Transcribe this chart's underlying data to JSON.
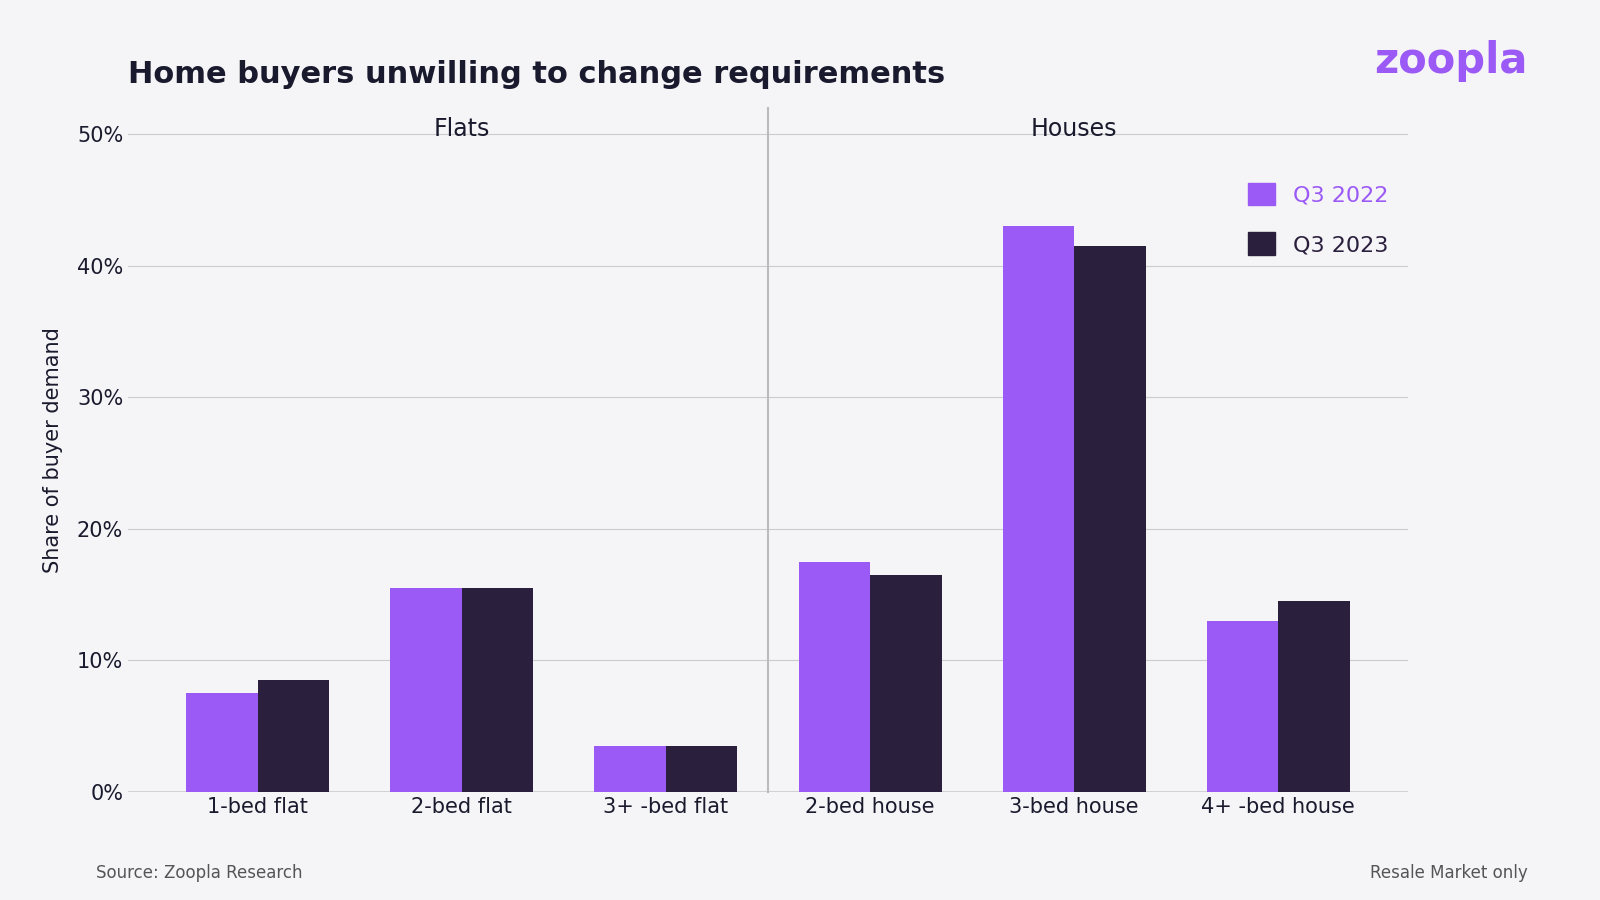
{
  "title": "Home buyers unwilling to change requirements",
  "categories": [
    "1-bed flat",
    "2-bed flat",
    "3+ -bed flat",
    "2-bed house",
    "3-bed house",
    "4+ -bed house"
  ],
  "q3_2022": [
    0.075,
    0.155,
    0.035,
    0.175,
    0.43,
    0.13
  ],
  "q3_2023": [
    0.085,
    0.155,
    0.035,
    0.165,
    0.415,
    0.145
  ],
  "color_2022": "#9b59f5",
  "color_2023": "#2a1f3d",
  "ylabel": "Share of buyer demand",
  "ylim": [
    0,
    0.52
  ],
  "yticks": [
    0.0,
    0.1,
    0.2,
    0.3,
    0.4,
    0.5
  ],
  "ytick_labels": [
    "0%",
    "10%",
    "20%",
    "30%",
    "40%",
    "50%"
  ],
  "legend_q3_2022": "Q3 2022",
  "legend_q3_2023": "Q3 2023",
  "flats_label": "Flats",
  "houses_label": "Houses",
  "source_text": "Source: Zoopla Research",
  "resale_text": "Resale Market only",
  "zoopla_text": "zoopla",
  "zoopla_color": "#9b59f5",
  "background_color": "#f5f4f6",
  "bar_width": 0.35,
  "title_color": "#1a1a2e",
  "label_color": "#1a1a2e"
}
